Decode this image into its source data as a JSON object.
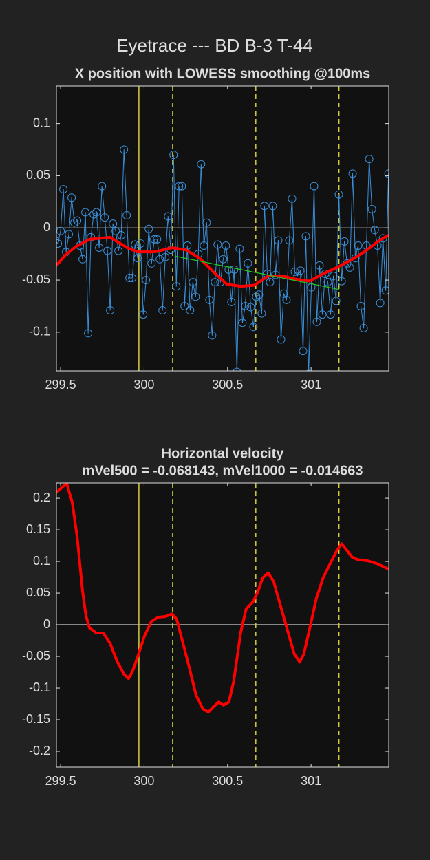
{
  "title": "Eyetrace --- BD B-3 T-44",
  "chart_data": [
    {
      "type": "line",
      "title": "X position with LOWESS smoothing @100ms",
      "xlim": [
        299.475,
        301.465
      ],
      "ylim": [
        -0.137,
        0.136
      ],
      "xticks": [
        299.5,
        300,
        300.5,
        301
      ],
      "yticks": [
        -0.1,
        -0.05,
        0,
        0.05,
        0.1
      ],
      "hlines": [
        {
          "y": 0,
          "color": "#ffffff"
        }
      ],
      "vlines": [
        {
          "x": 299.969,
          "style": "solid",
          "color": "#d4cc3c"
        },
        {
          "x": 300.171,
          "style": "dashed",
          "color": "#d4cc3c"
        },
        {
          "x": 300.669,
          "style": "dashed",
          "color": "#d4cc3c"
        },
        {
          "x": 301.167,
          "style": "dashed",
          "color": "#d4cc3c"
        }
      ],
      "series": [
        {
          "color": "#3a8fd9",
          "marker": "circle",
          "width": 1,
          "x": [
            299.467,
            299.4835,
            299.5,
            299.5165,
            299.533,
            299.5495,
            299.566,
            299.5825,
            299.599,
            299.6155,
            299.632,
            299.6485,
            299.665,
            299.6815,
            299.698,
            299.7145,
            299.731,
            299.7475,
            299.764,
            299.7805,
            299.797,
            299.8135,
            299.83,
            299.8465,
            299.863,
            299.8795,
            299.896,
            299.9125,
            299.929,
            299.9455,
            299.962,
            299.9785,
            299.995,
            300.0115,
            300.028,
            300.0445,
            300.061,
            300.0775,
            300.094,
            300.1105,
            300.127,
            300.1435,
            300.16,
            300.1765,
            300.193,
            300.2095,
            300.226,
            300.2425,
            300.259,
            300.2755,
            300.292,
            300.3085,
            300.325,
            300.3415,
            300.358,
            300.3745,
            300.391,
            300.4075,
            300.424,
            300.4405,
            300.457,
            300.4735,
            300.49,
            300.5065,
            300.523,
            300.5395,
            300.556,
            300.5725,
            300.589,
            300.6055,
            300.622,
            300.6385,
            300.655,
            300.6715,
            300.688,
            300.7045,
            300.721,
            300.7375,
            300.754,
            300.7705,
            300.787,
            300.8035,
            300.82,
            300.8365,
            300.853,
            300.8695,
            300.886,
            300.9025,
            300.919,
            300.9355,
            300.952,
            300.9685,
            300.985,
            301.0015,
            301.018,
            301.0345,
            301.051,
            301.0675,
            301.084,
            301.1005,
            301.117,
            301.1335,
            301.15,
            301.1665,
            301.183,
            301.1995,
            301.216,
            301.2325,
            301.249,
            301.2655,
            301.282,
            301.2985,
            301.315,
            301.3315,
            301.348,
            301.3645,
            301.381,
            301.3975,
            301.414,
            301.4305,
            301.447,
            301.4635
          ],
          "values": [
            -0.012,
            -0.015,
            -0.003,
            0.037,
            -0.023,
            -0.006,
            0.029,
            0.005,
            0.007,
            -0.017,
            -0.03,
            0.015,
            -0.101,
            -0.009,
            0.013,
            0.015,
            -0.019,
            0.04,
            0.01,
            -0.022,
            -0.079,
            0.004,
            -0.003,
            -0.022,
            -0.007,
            0.075,
            0.012,
            -0.048,
            -0.048,
            -0.016,
            -0.029,
            -0.015,
            -0.083,
            -0.05,
            -0.001,
            -0.034,
            -0.011,
            -0.011,
            -0.03,
            -0.079,
            -0.028,
            0.011,
            -0.021,
            0.07,
            -0.056,
            0.04,
            0.04,
            -0.075,
            -0.017,
            -0.079,
            -0.052,
            -0.066,
            -0.025,
            0.061,
            -0.017,
            0.005,
            -0.069,
            -0.103,
            -0.052,
            -0.016,
            -0.052,
            -0.03,
            -0.017,
            -0.04,
            -0.071,
            -0.04,
            -0.138,
            -0.02,
            -0.091,
            -0.075,
            -0.034,
            -0.076,
            -0.095,
            -0.066,
            -0.064,
            -0.082,
            0.021,
            -0.044,
            -0.052,
            0.021,
            -0.045,
            -0.012,
            -0.107,
            -0.063,
            -0.069,
            -0.012,
            0.028,
            -0.042,
            -0.046,
            -0.041,
            -0.118,
            -0.008,
            -0.14,
            -0.057,
            0.04,
            -0.09,
            -0.036,
            -0.083,
            -0.044,
            -0.052,
            -0.083,
            -0.046,
            -0.07,
            0.032,
            -0.051,
            -0.013,
            -0.034,
            -0.038,
            0.052,
            -0.029,
            -0.017,
            -0.075,
            -0.096,
            -0.017,
            0.066,
            0.018,
            -0.002,
            -0.017,
            -0.072,
            -0.01,
            -0.06,
            0.052
          ]
        },
        {
          "color": "#ff0000",
          "width": 4,
          "x": [
            299.475,
            299.529,
            299.591,
            299.673,
            299.796,
            299.899,
            299.961,
            300.064,
            300.167,
            300.249,
            300.332,
            300.414,
            300.496,
            300.578,
            300.66,
            300.743,
            300.825,
            300.907,
            300.99,
            301.072,
            301.154,
            301.237,
            301.319,
            301.401,
            301.463
          ],
          "values": [
            -0.036,
            -0.026,
            -0.018,
            -0.011,
            -0.009,
            -0.019,
            -0.023,
            -0.023,
            -0.019,
            -0.021,
            -0.029,
            -0.042,
            -0.054,
            -0.056,
            -0.055,
            -0.046,
            -0.046,
            -0.049,
            -0.051,
            -0.044,
            -0.038,
            -0.031,
            -0.023,
            -0.013,
            -0.007
          ]
        },
        {
          "color": "#22cc22",
          "width": 1.2,
          "x": [
            300.183,
            301.167
          ],
          "values": [
            -0.027,
            -0.059
          ]
        }
      ]
    },
    {
      "type": "line",
      "title": "Horizontal velocity",
      "subtitle": "mVel500 = -0.068143, mVel1000 = -0.014663",
      "xlim": [
        299.475,
        301.465
      ],
      "ylim": [
        -0.225,
        0.224
      ],
      "xticks": [
        299.5,
        300,
        300.5,
        301
      ],
      "yticks": [
        -0.2,
        -0.15,
        -0.1,
        -0.05,
        0,
        0.05,
        0.1,
        0.15,
        0.2
      ],
      "hlines": [
        {
          "y": 0,
          "color": "#ffffff"
        }
      ],
      "vlines": [
        {
          "x": 299.969,
          "style": "solid",
          "color": "#d4cc3c"
        },
        {
          "x": 300.171,
          "style": "dashed",
          "color": "#d4cc3c"
        },
        {
          "x": 300.669,
          "style": "dashed",
          "color": "#d4cc3c"
        },
        {
          "x": 301.167,
          "style": "dashed",
          "color": "#d4cc3c"
        }
      ],
      "series": [
        {
          "color": "#ff0000",
          "width": 4,
          "x": [
            299.475,
            299.508,
            299.537,
            299.57,
            299.599,
            299.632,
            299.652,
            299.673,
            299.714,
            299.755,
            299.796,
            299.837,
            299.879,
            299.907,
            299.932,
            299.961,
            300.002,
            300.043,
            300.084,
            300.126,
            300.167,
            300.195,
            300.228,
            300.27,
            300.311,
            300.352,
            300.385,
            300.414,
            300.447,
            300.475,
            300.508,
            300.537,
            300.578,
            300.611,
            300.652,
            300.681,
            300.71,
            300.743,
            300.776,
            300.817,
            300.858,
            300.899,
            300.932,
            300.957,
            300.99,
            301.031,
            301.072,
            301.113,
            301.154,
            301.183,
            301.216,
            301.245,
            301.278,
            301.34,
            301.401,
            301.463
          ],
          "values": [
            0.209,
            0.217,
            0.223,
            0.193,
            0.139,
            0.052,
            0.014,
            -0.005,
            -0.013,
            -0.013,
            -0.029,
            -0.057,
            -0.078,
            -0.085,
            -0.073,
            -0.051,
            -0.018,
            0.005,
            0.012,
            0.013,
            0.017,
            0.009,
            -0.024,
            -0.067,
            -0.111,
            -0.133,
            -0.138,
            -0.13,
            -0.122,
            -0.127,
            -0.122,
            -0.089,
            -0.013,
            0.025,
            0.036,
            0.052,
            0.074,
            0.082,
            0.068,
            0.03,
            -0.008,
            -0.046,
            -0.059,
            -0.046,
            -0.008,
            0.041,
            0.074,
            0.096,
            0.117,
            0.128,
            0.117,
            0.107,
            0.103,
            0.101,
            0.096,
            0.088
          ]
        }
      ]
    }
  ]
}
